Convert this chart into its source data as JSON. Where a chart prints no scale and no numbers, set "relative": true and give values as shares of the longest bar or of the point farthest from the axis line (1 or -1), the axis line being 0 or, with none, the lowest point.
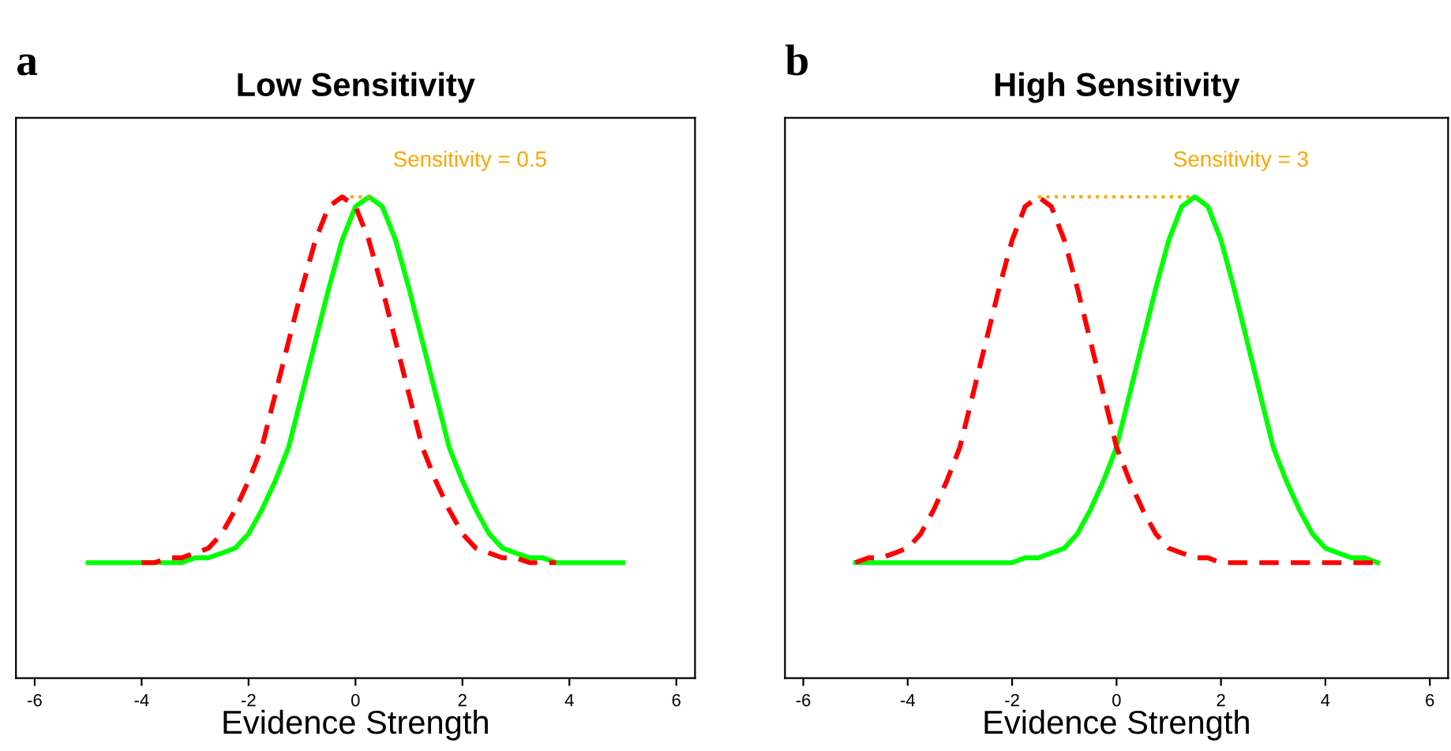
{
  "chart_data": [
    {
      "type": "line",
      "title": "Low Sensitivity",
      "xlabel": "Evidence Strength",
      "relative": true,
      "xlim": [
        -6.35,
        6.35
      ],
      "xticks": [
        -6,
        -4,
        -2,
        0,
        2,
        4,
        6
      ],
      "tick_labels": "x",
      "grid": false,
      "marker": "none",
      "annotations": [
        "a",
        "Sensitivity = 0.5"
      ],
      "series": [
        {
          "color": "#ff0000",
          "line_style": "dashed",
          "x": [
            -4,
            -3.75,
            -3.5,
            -3.25,
            -3,
            -2.75,
            -2.5,
            -2.25,
            -2,
            -1.75,
            -1.5,
            -1.25,
            -1,
            -0.75,
            -0.5,
            -0.25,
            0,
            0.25,
            0.5,
            0.75,
            1,
            1.25,
            1.5,
            1.75,
            2,
            2.25,
            2.5,
            2.75,
            3,
            3.25,
            3.5,
            3.75
          ],
          "values": [
            0.24,
            0.24,
            0.25,
            0.25,
            0.26,
            0.27,
            0.3,
            0.35,
            0.41,
            0.48,
            0.59,
            0.7,
            0.81,
            0.91,
            0.98,
            1,
            0.98,
            0.91,
            0.81,
            0.7,
            0.59,
            0.48,
            0.41,
            0.35,
            0.3,
            0.27,
            0.26,
            0.25,
            0.25,
            0.24,
            0.24,
            0.24
          ]
        },
        {
          "color": "#00ff00",
          "line_style": "solid",
          "x": [
            -5,
            -4.75,
            -4.5,
            -4.25,
            -4,
            -3.75,
            -3.5,
            -3.25,
            -3,
            -2.75,
            -2.5,
            -2.25,
            -2,
            -1.75,
            -1.5,
            -1.25,
            -1,
            -0.75,
            -0.5,
            -0.25,
            0,
            0.25,
            0.5,
            0.75,
            1,
            1.25,
            1.5,
            1.75,
            2,
            2.25,
            2.5,
            2.75,
            3,
            3.25,
            3.5,
            3.75,
            4,
            4.25,
            4.5,
            4.75,
            5
          ],
          "values": [
            0.24,
            0.24,
            0.24,
            0.24,
            0.24,
            0.24,
            0.24,
            0.24,
            0.25,
            0.25,
            0.26,
            0.27,
            0.3,
            0.35,
            0.41,
            0.48,
            0.59,
            0.7,
            0.81,
            0.91,
            0.98,
            1,
            0.98,
            0.91,
            0.81,
            0.7,
            0.59,
            0.48,
            0.41,
            0.35,
            0.3,
            0.27,
            0.26,
            0.25,
            0.25,
            0.24,
            0.24,
            0.24,
            0.24,
            0.24,
            0.24
          ]
        },
        {
          "color": "#ffa500",
          "line_style": "dotted",
          "x": [
            -0.25,
            0.25
          ],
          "values": [
            1,
            1
          ]
        }
      ]
    },
    {
      "type": "line",
      "title": "High Sensitivity",
      "xlabel": "Evidence Strength",
      "relative": true,
      "xlim": [
        -6.35,
        6.35
      ],
      "xticks": [
        -6,
        -4,
        -2,
        0,
        2,
        4,
        6
      ],
      "tick_labels": "x",
      "grid": false,
      "marker": "none",
      "annotations": [
        "b",
        "Sensitivity = 3"
      ],
      "series": [
        {
          "color": "#ff0000",
          "line_style": "dashed",
          "x": [
            -5,
            -4.75,
            -4.5,
            -4.25,
            -4,
            -3.75,
            -3.5,
            -3.25,
            -3,
            -2.75,
            -2.5,
            -2.25,
            -2,
            -1.75,
            -1.5,
            -1.25,
            -1,
            -0.75,
            -0.5,
            -0.25,
            0,
            0.25,
            0.5,
            0.75,
            1,
            1.25,
            1.5,
            1.75,
            2,
            2.25,
            2.5,
            2.75,
            3,
            3.25,
            3.5,
            3.75,
            4,
            4.25,
            4.5,
            4.75,
            5
          ],
          "values": [
            0.24,
            0.25,
            0.25,
            0.26,
            0.27,
            0.3,
            0.35,
            0.41,
            0.48,
            0.59,
            0.7,
            0.81,
            0.91,
            0.98,
            1,
            0.98,
            0.91,
            0.81,
            0.7,
            0.59,
            0.48,
            0.41,
            0.35,
            0.3,
            0.27,
            0.26,
            0.25,
            0.25,
            0.24,
            0.24,
            0.24,
            0.24,
            0.24,
            0.24,
            0.24,
            0.24,
            0.24,
            0.24,
            0.24,
            0.24,
            0.24
          ]
        },
        {
          "color": "#00ff00",
          "line_style": "solid",
          "x": [
            -5,
            -4.75,
            -4.5,
            -4.25,
            -4,
            -3.75,
            -3.5,
            -3.25,
            -3,
            -2.75,
            -2.5,
            -2.25,
            -2,
            -1.75,
            -1.5,
            -1.25,
            -1,
            -0.75,
            -0.5,
            -0.25,
            0,
            0.25,
            0.5,
            0.75,
            1,
            1.25,
            1.5,
            1.75,
            2,
            2.25,
            2.5,
            2.75,
            3,
            3.25,
            3.5,
            3.75,
            4,
            4.25,
            4.5,
            4.75,
            5
          ],
          "values": [
            0.24,
            0.24,
            0.24,
            0.24,
            0.24,
            0.24,
            0.24,
            0.24,
            0.24,
            0.24,
            0.24,
            0.24,
            0.24,
            0.25,
            0.25,
            0.26,
            0.27,
            0.3,
            0.35,
            0.41,
            0.48,
            0.59,
            0.7,
            0.81,
            0.91,
            0.98,
            1,
            0.98,
            0.91,
            0.81,
            0.7,
            0.59,
            0.48,
            0.41,
            0.35,
            0.3,
            0.27,
            0.26,
            0.25,
            0.25,
            0.24
          ]
        },
        {
          "color": "#ffa500",
          "line_style": "dotted",
          "x": [
            -1.5,
            1.5
          ],
          "values": [
            1,
            1
          ]
        }
      ]
    }
  ]
}
